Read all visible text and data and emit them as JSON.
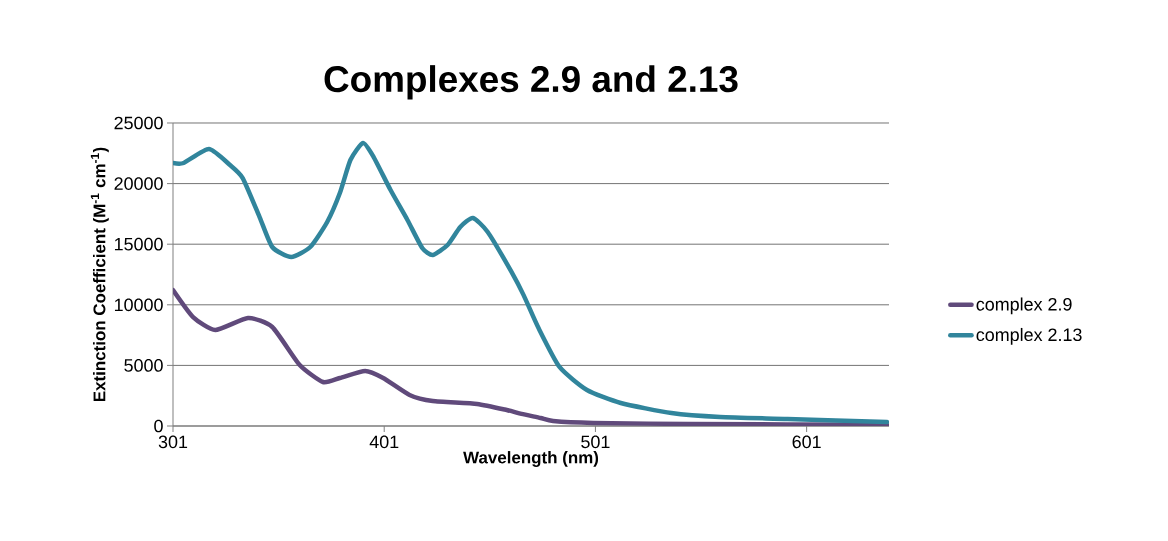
{
  "chart_data": {
    "type": "line",
    "title": "Complexes 2.9 and 2.13",
    "xlabel": "Wavelength (nm)",
    "ylabel": "Extinction Coefficient (M$^{-1}$ cm$^{-1}$)",
    "xlim": [
      301,
      640
    ],
    "xticks": [
      301,
      401,
      501,
      601
    ],
    "ylim": [
      0,
      25000
    ],
    "yticks": [
      0,
      5000,
      10000,
      15000,
      20000,
      25000
    ],
    "grid": "y",
    "legend": "right",
    "marker": "none",
    "line_style": "solid",
    "series": [
      {
        "name": "complex 2.9",
        "color": "#604a7b",
        "x": [
          301,
          310.5,
          321,
          336.5,
          348,
          361,
          372,
          380,
          392,
          400.5,
          413,
          424,
          445,
          459,
          466,
          475,
          481,
          500,
          545,
          639
        ],
        "values": [
          11220,
          8990,
          7920,
          8910,
          8170,
          5030,
          3630,
          3960,
          4540,
          3960,
          2560,
          2060,
          1820,
          1320,
          1000,
          660,
          410,
          250,
          170,
          100
        ]
      },
      {
        "name": "complex 2.13",
        "color": "#31859c",
        "x": [
          301,
          306,
          318,
          328,
          334,
          342,
          348,
          357,
          366,
          374,
          380,
          385,
          391,
          396,
          404,
          412,
          419,
          424,
          431,
          437,
          443,
          450,
          461,
          467,
          474,
          484,
          497,
          513,
          537,
          560,
          592,
          639
        ],
        "values": [
          21700,
          21700,
          22850,
          21530,
          20460,
          17240,
          14770,
          13940,
          14770,
          16830,
          19220,
          21950,
          23350,
          22190,
          19470,
          17000,
          14690,
          14110,
          14930,
          16420,
          17160,
          16010,
          12800,
          10800,
          8100,
          4870,
          2970,
          1900,
          1070,
          740,
          580,
          330
        ]
      }
    ]
  }
}
